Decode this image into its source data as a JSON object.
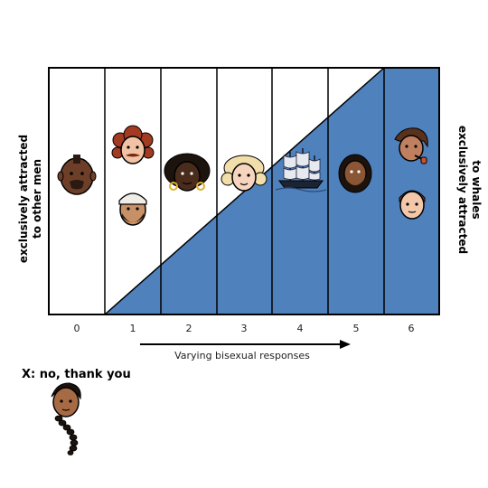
{
  "labels": {
    "left_line1": "exclusively attracted",
    "left_line2": "to other men",
    "right_line1": "exclusively attracted",
    "right_line2": "to whales",
    "axis": "Varying bisexual responses",
    "x_option": "X: no, thank you"
  },
  "ticks": [
    "0",
    "1",
    "2",
    "3",
    "4",
    "5",
    "6"
  ],
  "icons": {
    "c0": [
      "bald-mohawk-man-face-icon"
    ],
    "c1": [
      "curly-red-hair-man-face-icon",
      "headwrap-bearded-man-face-icon"
    ],
    "c2": [
      "afro-man-face-icon"
    ],
    "c3": [
      "blond-curly-man-face-icon"
    ],
    "c4": [
      "sailing-ship-icon"
    ],
    "c5": [
      "long-hair-bearded-man-face-icon"
    ],
    "c6": [
      "pipe-smoking-man-face-icon",
      "auburn-hair-man-face-icon"
    ],
    "x": [
      "braided-hair-man-face-icon"
    ]
  },
  "colors": {
    "fill": "#4f81bd",
    "line": "#000000"
  }
}
